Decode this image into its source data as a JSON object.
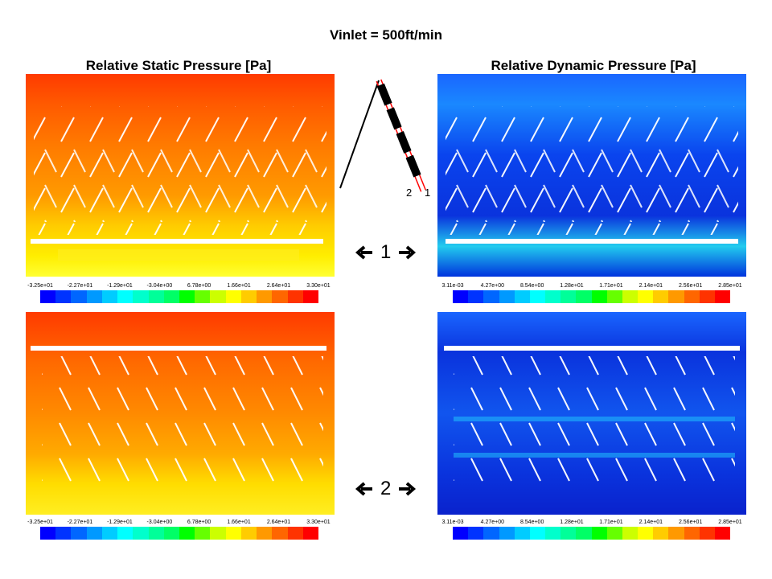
{
  "figure": {
    "title": "Vinlet = 500ft/min",
    "left_title": "Relative Static Pressure [Pa]",
    "right_title": "Relative Dynamic Pressure [Pa]"
  },
  "static_legend": {
    "ticks": [
      "-3.25e+01",
      "-2.27e+01",
      "-1.29e+01",
      "-3.04e+00",
      "6.78e+00",
      "1.66e+01",
      "2.64e+01",
      "3.30e+01"
    ]
  },
  "dynamic_legend": {
    "ticks": [
      "3.11e-03",
      "4.27e+00",
      "8.54e+00",
      "1.28e+01",
      "1.71e+01",
      "2.14e+01",
      "2.56e+01",
      "2.85e+01"
    ]
  },
  "colormap": [
    "#0000ff",
    "#0033ff",
    "#0066ff",
    "#0099ff",
    "#00ccff",
    "#00ffff",
    "#00ffcc",
    "#00ff99",
    "#00ff66",
    "#00ff00",
    "#66ff00",
    "#ccff00",
    "#ffff00",
    "#ffcc00",
    "#ff9900",
    "#ff6600",
    "#ff3300",
    "#ff0000"
  ],
  "cases": [
    {
      "label": "1"
    },
    {
      "label": "2"
    }
  ],
  "diagram_labels": {
    "left": "2",
    "right": "1"
  }
}
